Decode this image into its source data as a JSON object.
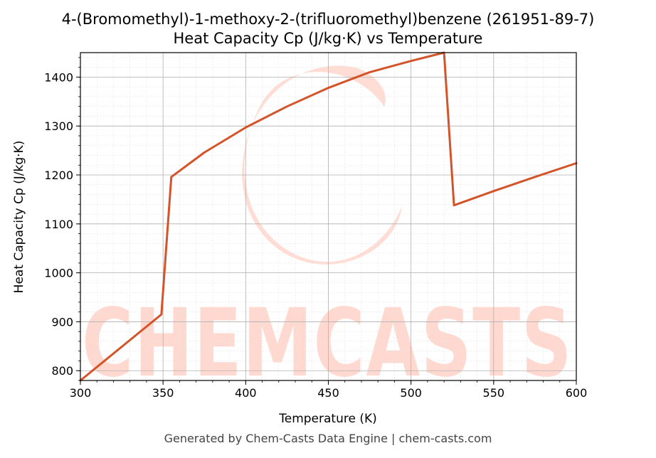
{
  "chart_data": {
    "type": "line",
    "title": "4-(Bromomethyl)-1-methoxy-2-(trifluoromethyl)benzene (261951-89-7)",
    "subtitle": "Heat Capacity Cp (J/kg·K) vs Temperature",
    "xlabel": "Temperature (K)",
    "ylabel": "Heat Capacity Cp (J/kg·K)",
    "xlim": [
      300,
      600
    ],
    "ylim": [
      780,
      1450
    ],
    "xticks": [
      300,
      350,
      400,
      450,
      500,
      550,
      600
    ],
    "yticks": [
      800,
      900,
      1000,
      1100,
      1200,
      1300,
      1400
    ],
    "grid": true,
    "series": [
      {
        "color": "#d4542a",
        "x": [
          300,
          349,
          355,
          375,
          400,
          425,
          450,
          475,
          500,
          520,
          526,
          550,
          575,
          600
        ],
        "y": [
          780,
          915,
          1196,
          1246,
          1297,
          1340,
          1378,
          1410,
          1433,
          1450,
          1138,
          1167,
          1196,
          1224
        ]
      }
    ]
  },
  "watermark": {
    "text": "CHEMCASTS",
    "color": "#ffd9d0"
  },
  "footer": "Generated by Chem-Casts Data Engine | chem-casts.com"
}
